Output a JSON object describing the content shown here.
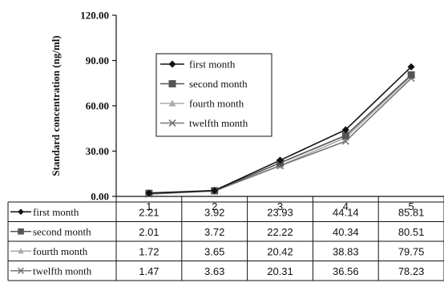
{
  "chart_data": {
    "type": "line",
    "ylabel": "Standard concentration (ng/ml)",
    "ylim": [
      0,
      120
    ],
    "yticks": [
      "0.00",
      "30.00",
      "60.00",
      "90.00",
      "120.00"
    ],
    "categories": [
      "1",
      "2",
      "3",
      "4",
      "5"
    ],
    "legend_position": "top-left",
    "grid": false,
    "series": [
      {
        "name": "first month",
        "marker": "diamond",
        "color": "#111111",
        "values": [
          2.21,
          3.92,
          23.93,
          44.14,
          85.81
        ],
        "labels": [
          "2.21",
          "3.92",
          "23.93",
          "44.14",
          "85.81"
        ]
      },
      {
        "name": "second month",
        "marker": "square",
        "color": "#555555",
        "values": [
          2.01,
          3.72,
          22.22,
          40.34,
          80.51
        ],
        "labels": [
          "2.01",
          "3.72",
          "22.22",
          "40.34",
          "80.51"
        ]
      },
      {
        "name": "fourth month",
        "marker": "triangle",
        "color": "#aaaaaa",
        "values": [
          1.72,
          3.65,
          20.42,
          38.83,
          79.75
        ],
        "labels": [
          "1.72",
          "3.65",
          "20.42",
          "38.83",
          "79.75"
        ]
      },
      {
        "name": "twelfth month",
        "marker": "x",
        "color": "#777777",
        "values": [
          1.47,
          3.63,
          20.31,
          36.56,
          78.23
        ],
        "labels": [
          "1.47",
          "3.63",
          "20.31",
          "36.56",
          "78.23"
        ]
      }
    ]
  }
}
